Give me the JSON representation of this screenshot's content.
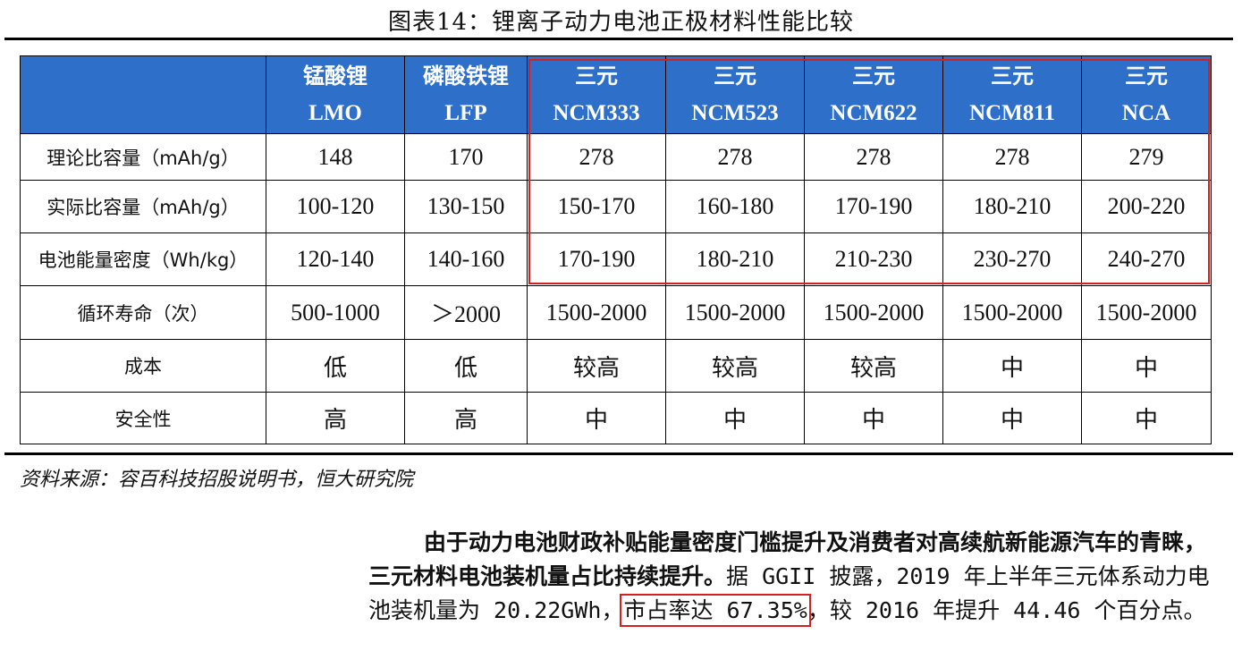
{
  "title": "图表14：锂离子动力电池正极材料性能比较",
  "table": {
    "columns": [
      {
        "cn": "锰酸锂",
        "en": "LMO"
      },
      {
        "cn": "磷酸铁锂",
        "en": "LFP"
      },
      {
        "cn": "三元",
        "en": "NCM333"
      },
      {
        "cn": "三元",
        "en": "NCM523"
      },
      {
        "cn": "三元",
        "en": "NCM622"
      },
      {
        "cn": "三元",
        "en": "NCM811"
      },
      {
        "cn": "三元",
        "en": "NCA"
      }
    ],
    "rows": [
      {
        "label": "理论比容量（mAh/g）",
        "cells": [
          "148",
          "170",
          "278",
          "278",
          "278",
          "278",
          "279"
        ]
      },
      {
        "label": "实际比容量（mAh/g）",
        "cells": [
          "100-120",
          "130-150",
          "150-170",
          "160-180",
          "170-190",
          "180-210",
          "200-220"
        ]
      },
      {
        "label": "电池能量密度（Wh/kg）",
        "cells": [
          "120-140",
          "140-160",
          "170-190",
          "180-210",
          "210-230",
          "230-270",
          "240-270"
        ]
      },
      {
        "label": "循环寿命（次）",
        "cells": [
          "500-1000",
          "＞2000",
          "1500-2000",
          "1500-2000",
          "1500-2000",
          "1500-2000",
          "1500-2000"
        ]
      },
      {
        "label": "成本",
        "cells": [
          "低",
          "低",
          "较高",
          "较高",
          "较高",
          "中",
          "中"
        ]
      },
      {
        "label": "安全性",
        "cells": [
          "高",
          "高",
          "中",
          "中",
          "中",
          "中",
          "中"
        ]
      }
    ]
  },
  "source": "资料来源：容百科技招股说明书，恒大研究院",
  "paragraph": {
    "bold": "由于动力电池财政补贴能量密度门槛提升及消费者对高续航新能源汽车的青睐，三元材料电池装机量占比持续提升。",
    "normal_1": "据 GGII 披露，2019 年上半年三元体系动力电池装机量为 20.22GWh，",
    "highlight": "市占率达 67.35%",
    "normal_2": "，较 2016 年提升 44.46 个百分点。"
  },
  "colors": {
    "header_bg": "#2e6fc9",
    "highlight_border": "#d32020"
  }
}
